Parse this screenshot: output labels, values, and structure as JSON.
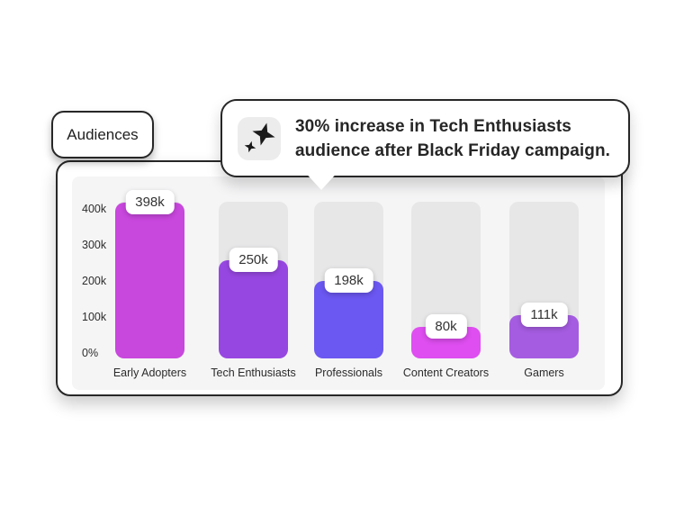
{
  "header": {
    "audiences_label": "Audiences"
  },
  "tooltip": {
    "icon": "sparkle-icon",
    "line1": "30% increase in Tech Enthusiasts",
    "line2": "audience after Black Friday campaign."
  },
  "chart_data": {
    "type": "bar",
    "title": "Audiences",
    "categories": [
      "Early Adopters",
      "Tech Enthusiasts",
      "Professionals",
      "Content Creators",
      "Gamers"
    ],
    "values": [
      398000,
      250000,
      198000,
      80000,
      111000
    ],
    "value_labels": [
      "398k",
      "250k",
      "198k",
      "80k",
      "111k"
    ],
    "bar_colors": [
      "#c847dd",
      "#9747e1",
      "#6b57f1",
      "#de4ef0",
      "#a55ce1"
    ],
    "y_ticks": [
      {
        "label": "400k",
        "value": 400000
      },
      {
        "label": "300k",
        "value": 300000
      },
      {
        "label": "200k",
        "value": 200000
      },
      {
        "label": "100k",
        "value": 100000
      },
      {
        "label": "0%",
        "value": 0
      }
    ],
    "ylim": [
      0,
      400000
    ],
    "grid": false,
    "legend": "none",
    "track_color": "#e7e7e8",
    "panel_color": "#f5f5f6",
    "accent_border_color": "#272727"
  }
}
